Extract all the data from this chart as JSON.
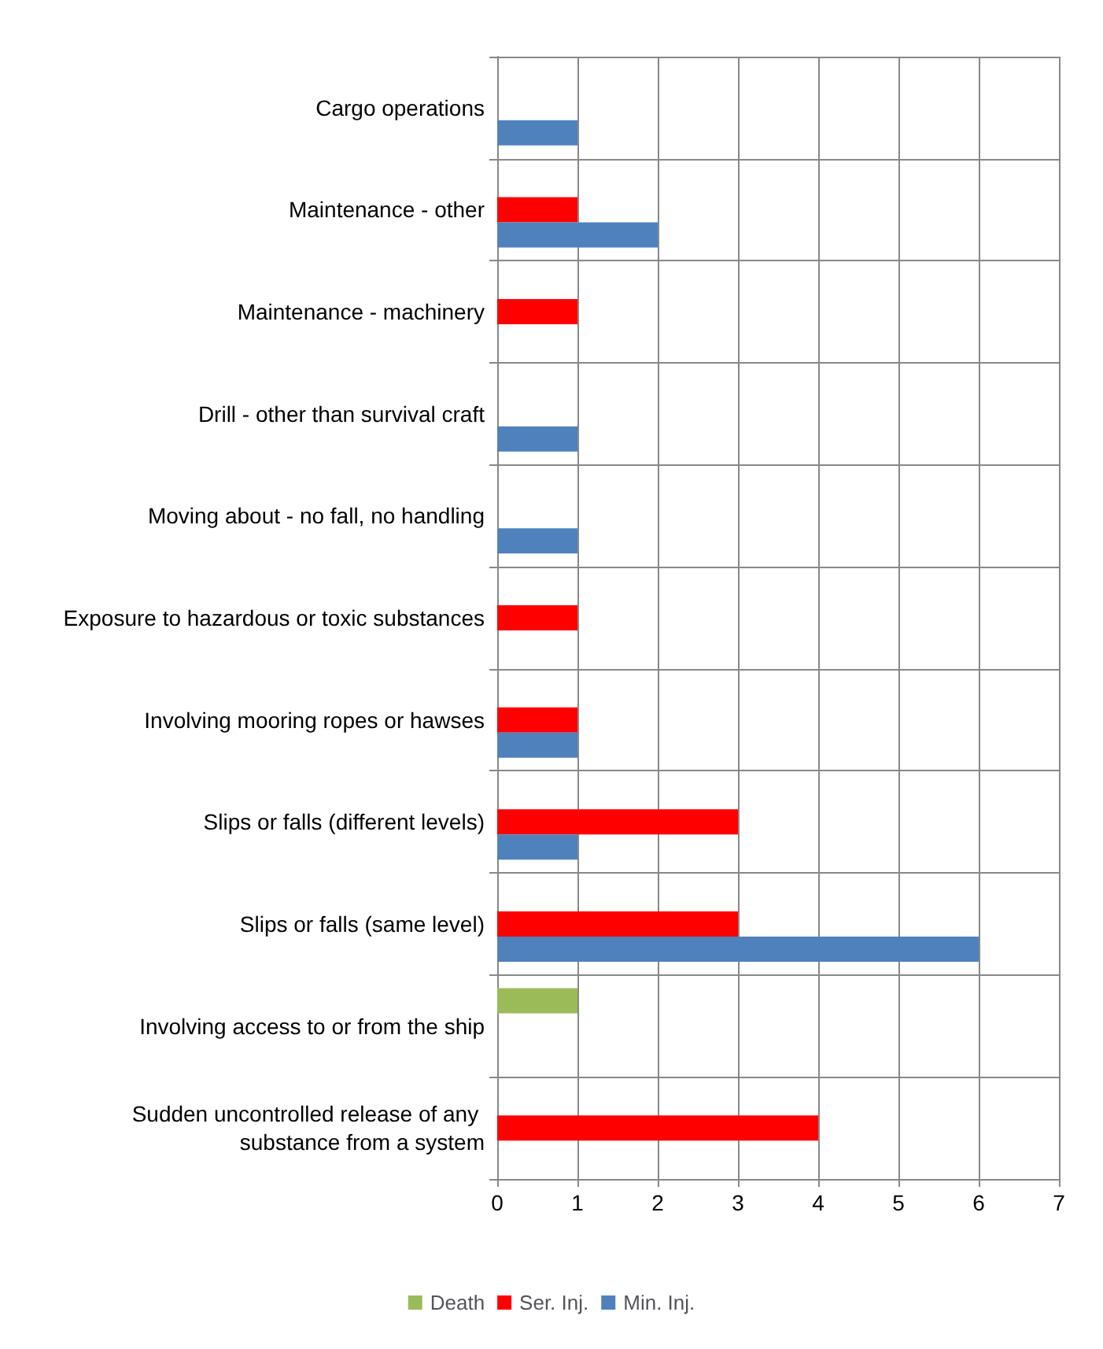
{
  "chart_data": {
    "type": "bar",
    "orientation": "horizontal",
    "categories": [
      "Cargo operations",
      "Maintenance - other",
      "Maintenance - machinery",
      "Drill - other than survival craft",
      "Moving about - no fall, no handling",
      "Exposure to hazardous or toxic substances",
      "Involving mooring ropes or hawses",
      "Slips or falls (different levels)",
      "Slips or falls (same level)",
      "Involving access to or from the ship",
      "Sudden uncontrolled release of any substance from a system"
    ],
    "series": [
      {
        "name": "Death",
        "color": "#9bbb59",
        "values": [
          null,
          null,
          null,
          null,
          null,
          null,
          null,
          null,
          null,
          1,
          null
        ]
      },
      {
        "name": "Ser. Inj.",
        "color": "#ff0000",
        "values": [
          null,
          1,
          1,
          null,
          null,
          1,
          1,
          3,
          3,
          null,
          4
        ]
      },
      {
        "name": "Min. Inj.",
        "color": "#4f81bd",
        "values": [
          1,
          2,
          null,
          1,
          1,
          null,
          1,
          1,
          6,
          null,
          null
        ]
      }
    ],
    "xlim": [
      0,
      7
    ],
    "xticks": [
      0,
      1,
      2,
      3,
      4,
      5,
      6,
      7
    ],
    "grid": true,
    "legend": "bottom"
  }
}
